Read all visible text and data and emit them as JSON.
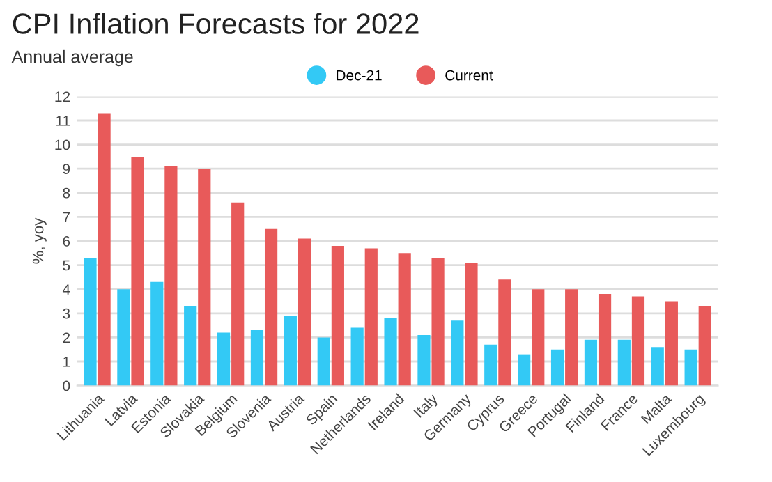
{
  "chart_data": {
    "type": "bar",
    "title": "CPI Inflation Forecasts for 2022",
    "subtitle": "Annual average",
    "ylabel": "%, yoy",
    "categories": [
      "Lithuania",
      "Latvia",
      "Estonia",
      "Slovakia",
      "Belgium",
      "Slovenia",
      "Austria",
      "Spain",
      "Netherlands",
      "Ireland",
      "Italy",
      "Germany",
      "Cyprus",
      "Greece",
      "Portugal",
      "Finland",
      "France",
      "Malta",
      "Luxembourg"
    ],
    "series": [
      {
        "name": "Dec-21",
        "color": "#33c9f5",
        "values": [
          5.3,
          4.0,
          4.3,
          3.3,
          2.2,
          2.3,
          2.9,
          2.0,
          2.4,
          2.8,
          2.1,
          2.7,
          1.7,
          1.3,
          1.5,
          1.9,
          1.9,
          1.6,
          1.5
        ]
      },
      {
        "name": "Current",
        "color": "#e85a5a",
        "values": [
          11.3,
          9.5,
          9.1,
          9.0,
          7.6,
          6.5,
          6.1,
          5.8,
          5.7,
          5.5,
          5.3,
          5.1,
          4.4,
          4.0,
          4.0,
          3.8,
          3.7,
          3.5,
          3.3
        ]
      }
    ],
    "ylim": [
      0,
      12
    ],
    "yticks": [
      0,
      1,
      2,
      3,
      4,
      5,
      6,
      7,
      8,
      9,
      10,
      11,
      12
    ],
    "grid": "y",
    "legend": "top"
  }
}
